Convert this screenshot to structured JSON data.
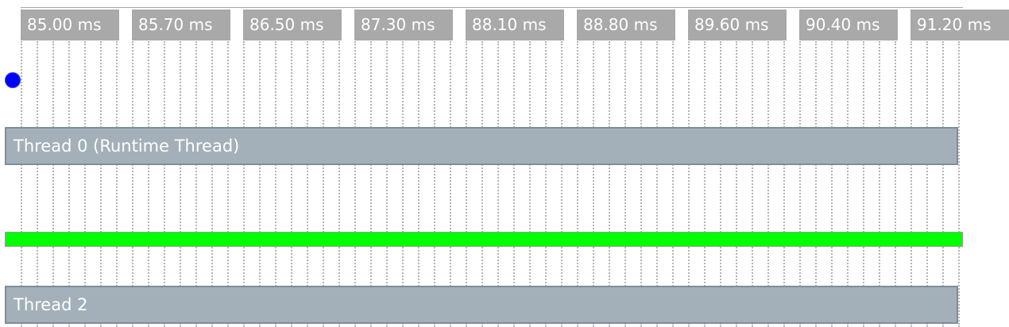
{
  "timeline": {
    "ticks": [
      "85.00 ms",
      "85.70 ms",
      "86.50 ms",
      "87.30 ms",
      "88.10 ms",
      "88.80 ms",
      "89.60 ms",
      "90.40 ms",
      "91.20 ms"
    ],
    "marker_color": "#0000ff",
    "activity_color": "#00ff00",
    "threads": [
      {
        "label": "Thread 0 (Runtime Thread)"
      },
      {
        "label": "Thread 2"
      }
    ]
  }
}
